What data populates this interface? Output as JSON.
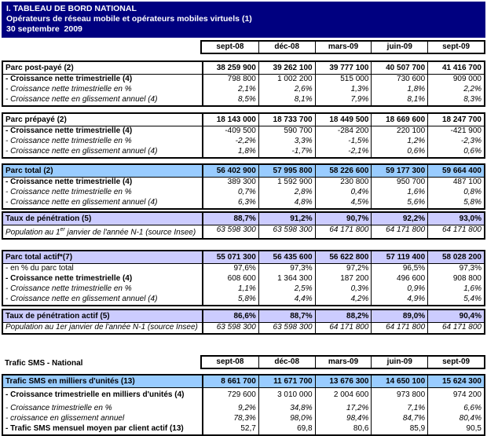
{
  "banner": {
    "line1": "I. TABLEAU DE BORD NATIONAL",
    "line2": "Opérateurs de réseau mobile et opérateurs mobiles virtuels (1)",
    "line3": "30 septembre  2009"
  },
  "columns": [
    "sept-08",
    "déc-08",
    "mars-09",
    "juin-09",
    "sept-09"
  ],
  "sms_label": "Trafic SMS - National",
  "colors": {
    "banner_bg": "#000080",
    "banner_text": "#FFFFFF",
    "light_blue": "#99CCFF",
    "lavender": "#CCCCFF",
    "border": "#000000",
    "white": "#FFFFFF"
  },
  "sections": [
    {
      "name": "parc-post-paye",
      "header_bg": "white",
      "rows": [
        {
          "label": "Parc post-payé (2)",
          "style": "header",
          "values": [
            "38 259 900",
            "39 262 100",
            "39 777 100",
            "40 507 700",
            "41 416 700"
          ]
        },
        {
          "label": "- Croissance nette trimestrielle (4)",
          "style": "bold",
          "values": [
            "798 800",
            "1 002 200",
            "515 000",
            "730 600",
            "909 000"
          ]
        },
        {
          "label": "- Croissance nette trimestrielle en %",
          "style": "italic",
          "values": [
            "2,1%",
            "2,6%",
            "1,3%",
            "1,8%",
            "2,2%"
          ]
        },
        {
          "label": "- Croissance nette en glissement annuel (4)",
          "style": "italic",
          "values": [
            "8,5%",
            "8,1%",
            "7,9%",
            "8,1%",
            "8,3%"
          ]
        }
      ]
    },
    {
      "name": "parc-prepaye",
      "header_bg": "white",
      "rows": [
        {
          "label": "Parc prépayé (2)",
          "style": "header",
          "values": [
            "18 143 000",
            "18 733 700",
            "18 449 500",
            "18 669 600",
            "18 247 700"
          ]
        },
        {
          "label": "- Croissance nette trimestrielle (4)",
          "style": "bold",
          "values": [
            "-409 500",
            "590 700",
            "-284 200",
            "220 100",
            "-421 900"
          ]
        },
        {
          "label": "- Croissance nette trimestrielle en %",
          "style": "italic",
          "values": [
            "-2,2%",
            "3,3%",
            "-1,5%",
            "1,2%",
            "-2,3%"
          ]
        },
        {
          "label": "- Croissance nette en glissement annuel (4)",
          "style": "italic",
          "values": [
            "1,8%",
            "-1,7%",
            "-2,1%",
            "0,6%",
            "0,6%"
          ]
        }
      ]
    },
    {
      "name": "parc-total",
      "header_bg": "light_blue",
      "rows": [
        {
          "label": "Parc total (2)",
          "style": "header",
          "values": [
            "56 402 900",
            "57 995 800",
            "58 226 600",
            "59 177 300",
            "59 664 400"
          ]
        },
        {
          "label": "- Croissance nette trimestrielle (4)",
          "style": "bold",
          "values": [
            "389 300",
            "1 592 900",
            "230 800",
            "950 700",
            "487 100"
          ]
        },
        {
          "label": "- Croissance nette trimestrielle en %",
          "style": "italic",
          "values": [
            "0,7%",
            "2,8%",
            "0,4%",
            "1,6%",
            "0,8%"
          ]
        },
        {
          "label": "- Croissance nette en glissement annuel (4)",
          "style": "italic",
          "values": [
            "6,3%",
            "4,8%",
            "4,5%",
            "5,6%",
            "5,8%"
          ]
        }
      ]
    },
    {
      "name": "taux-penetration",
      "header_bg": "lavender",
      "rows": [
        {
          "label": "Taux de pénétration (5)",
          "style": "header",
          "values": [
            "88,7%",
            "91,2%",
            "90,7%",
            "92,2%",
            "93,0%"
          ]
        },
        {
          "label": "Population au 1er janvier de l'année N-1 (source Insee)",
          "style": "italic",
          "sup": true,
          "values": [
            "63 598 300",
            "63 598 300",
            "64 171 800",
            "64 171 800",
            "64 171 800"
          ]
        }
      ]
    },
    {
      "name": "parc-total-actif",
      "header_bg": "lavender",
      "rows": [
        {
          "label": "Parc total actif*(7)",
          "style": "header",
          "values": [
            "55 071 300",
            "56 435 600",
            "56 622 800",
            "57 119 400",
            "58 028 200"
          ]
        },
        {
          "label": "- en % du parc total",
          "style": "regular",
          "values": [
            "97,6%",
            "97,3%",
            "97,2%",
            "96,5%",
            "97,3%"
          ]
        },
        {
          "label": "- Croissance nette trimestrielle (4)",
          "style": "bold",
          "values": [
            "608 600",
            "1 364 300",
            "187 200",
            "496 600",
            "908 800"
          ]
        },
        {
          "label": "- Croissance nette trimestrielle en %",
          "style": "italic",
          "values": [
            "1,1%",
            "2,5%",
            "0,3%",
            "0,9%",
            "1,6%"
          ]
        },
        {
          "label": "- Croissance nette en glissement annuel (4)",
          "style": "italic",
          "values": [
            "5,8%",
            "4,4%",
            "4,2%",
            "4,9%",
            "5,4%"
          ]
        }
      ]
    },
    {
      "name": "taux-penetration-actif",
      "header_bg": "lavender",
      "rows": [
        {
          "label": "Taux de pénétration actif (5)",
          "style": "header",
          "values": [
            "86,6%",
            "88,7%",
            "88,2%",
            "89,0%",
            "90,4%"
          ]
        },
        {
          "label": "Population au 1er janvier de l'année N-1 (source Insee)",
          "style": "italic",
          "values": [
            "63 598 300",
            "63 598 300",
            "64 171 800",
            "64 171 800",
            "64 171 800"
          ]
        }
      ]
    },
    {
      "name": "trafic-sms",
      "header_bg": "light_blue",
      "rows": [
        {
          "label": "Trafic SMS en milliers d'unités (13)",
          "style": "header",
          "values": [
            "8 661 700",
            "11 671 700",
            "13 676 300",
            "14 650 100",
            "15 624 300"
          ]
        },
        {
          "label": "- Croissance trimestrielle en milliers d'unités (4)",
          "style": "bold",
          "pad": true,
          "values": [
            "729 600",
            "3 010 000",
            "2 004 600",
            "973 800",
            "974 200"
          ]
        },
        {
          "label": "- Croissance trimestrielle en %",
          "style": "italic",
          "values": [
            "9,2%",
            "34,8%",
            "17,2%",
            "7,1%",
            "6,6%"
          ]
        },
        {
          "label": "- croissance en glissement annuel",
          "style": "italic",
          "values": [
            "78,3%",
            "98,0%",
            "98,4%",
            "84,7%",
            "80,4%"
          ]
        },
        {
          "label": "- Trafic SMS mensuel moyen par client actif (13)",
          "style": "bold",
          "values": [
            "52,7",
            "69,8",
            "80,6",
            "85,9",
            "90,5"
          ]
        }
      ]
    }
  ]
}
